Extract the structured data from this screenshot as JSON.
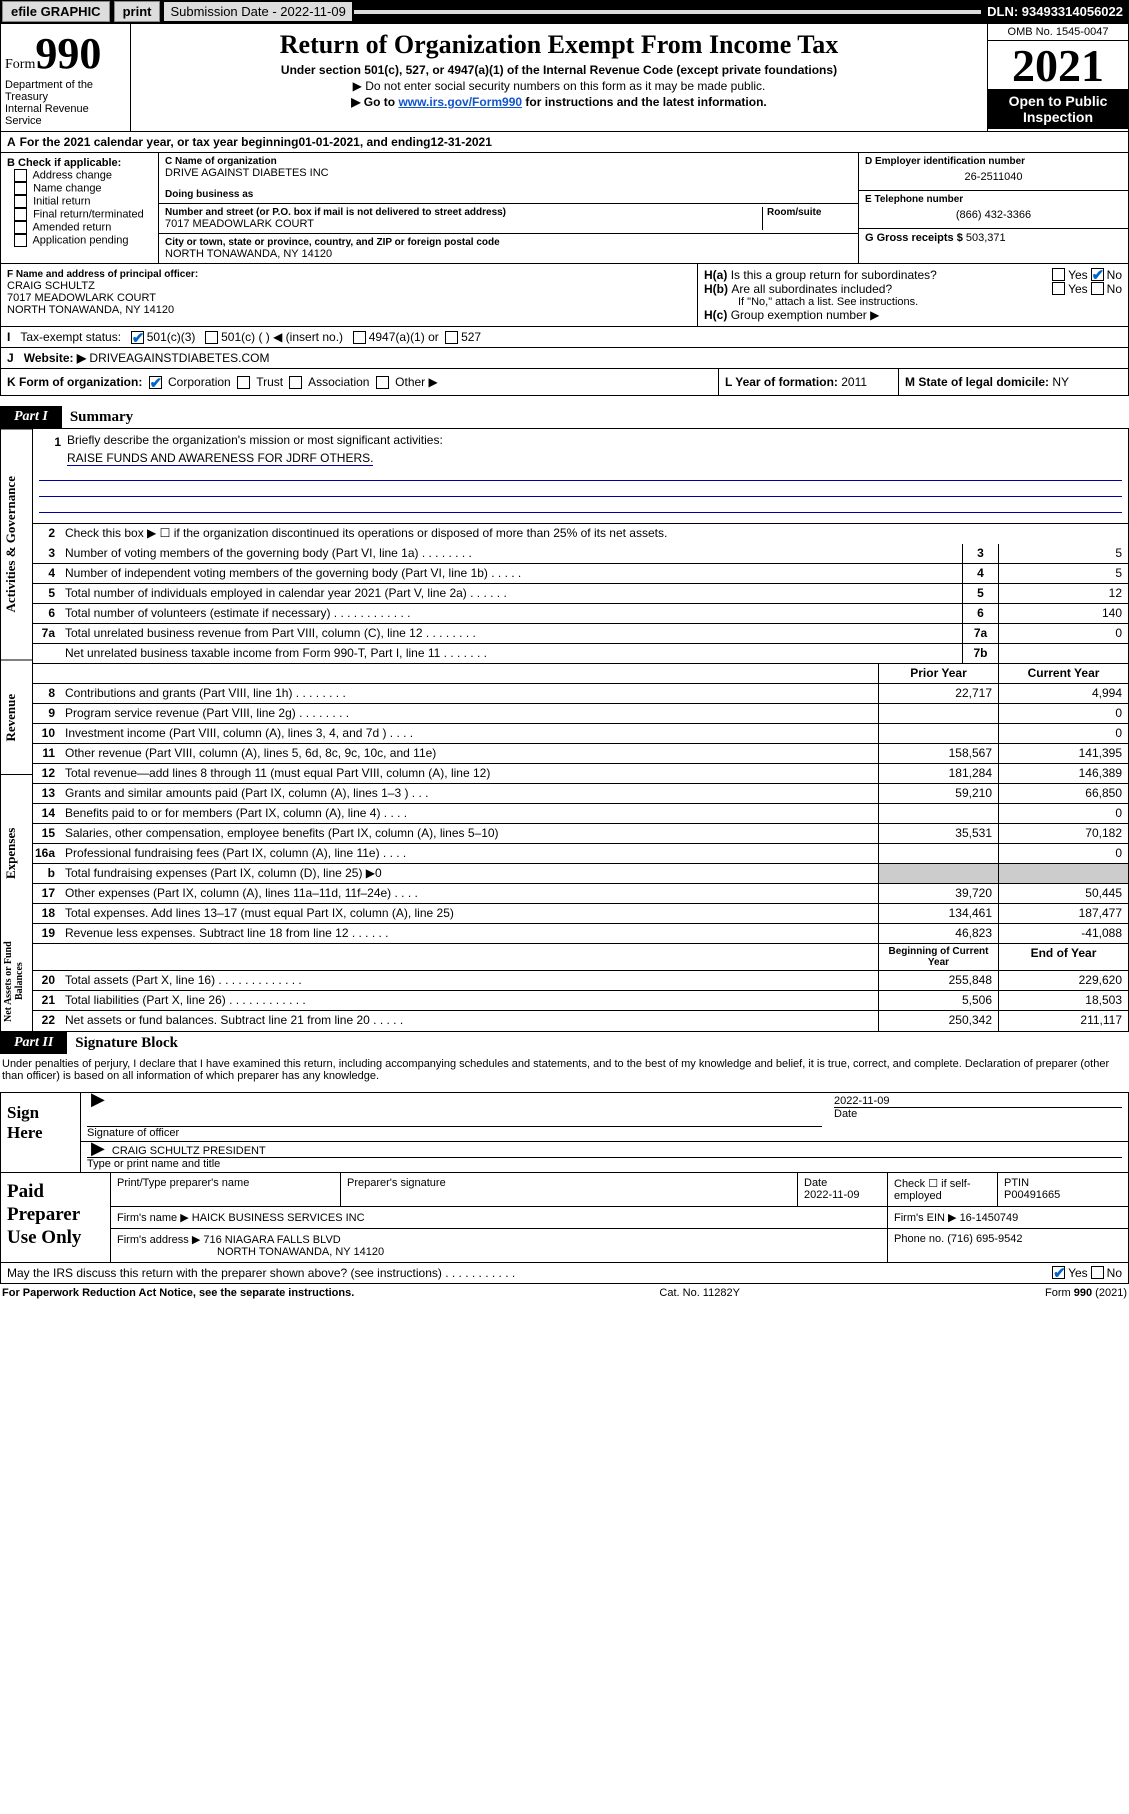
{
  "topbar": {
    "efile": "efile GRAPHIC",
    "print": "print",
    "submission_label": "Submission Date - 2022-11-09",
    "dln": "DLN: 93493314056022"
  },
  "header": {
    "form_label": "Form",
    "form_number": "990",
    "dept": "Department of the Treasury",
    "irs": "Internal Revenue Service",
    "title": "Return of Organization Exempt From Income Tax",
    "subtitle": "Under section 501(c), 527, or 4947(a)(1) of the Internal Revenue Code (except private foundations)",
    "line1": "▶ Do not enter social security numbers on this form as it may be made public.",
    "line2a": "▶ Go to ",
    "line2b": "www.irs.gov/Form990",
    "line2c": " for instructions and the latest information.",
    "omb": "OMB No. 1545-0047",
    "year": "2021",
    "open": "Open to Public Inspection"
  },
  "period": {
    "text_a": "For the 2021 calendar year, or tax year beginning ",
    "begin": "01-01-2021",
    "text_b": " , and ending ",
    "end": "12-31-2021"
  },
  "sectionB": {
    "title": "B Check if applicable:",
    "opts": [
      "Address change",
      "Name change",
      "Initial return",
      "Final return/terminated",
      "Amended return",
      "Application pending"
    ]
  },
  "sectionC": {
    "name_label": "C Name of organization",
    "name": "DRIVE AGAINST DIABETES INC",
    "dba_label": "Doing business as",
    "addr_label": "Number and street (or P.O. box if mail is not delivered to street address)",
    "room_label": "Room/suite",
    "addr": "7017 MEADOWLARK COURT",
    "city_label": "City or town, state or province, country, and ZIP or foreign postal code",
    "city": "NORTH TONAWANDA, NY  14120"
  },
  "sectionD": {
    "label": "D Employer identification number",
    "ein": "26-2511040",
    "tel_label": "E Telephone number",
    "tel": "(866) 432-3366",
    "gross_label": "G Gross receipts $ ",
    "gross": "503,371"
  },
  "sectionF": {
    "label": "F Name and address of principal officer:",
    "name": "CRAIG SCHULTZ",
    "addr1": "7017 MEADOWLARK COURT",
    "addr2": "NORTH TONAWANDA, NY  14120"
  },
  "sectionH": {
    "a": "Is this a group return for subordinates?",
    "b": "Are all subordinates included?",
    "b_note": "If \"No,\" attach a list. See instructions.",
    "c": "Group exemption number ▶"
  },
  "status": {
    "label": "Tax-exempt status:",
    "a": "501(c)(3)",
    "b": "501(c) (  ) ◀ (insert no.)",
    "c": "4947(a)(1) or",
    "d": "527"
  },
  "website": {
    "label": "Website: ▶",
    "value": "DRIVEAGAINSTDIABETES.COM"
  },
  "k": {
    "label": "K Form of organization:",
    "opts": [
      "Corporation",
      "Trust",
      "Association",
      "Other ▶"
    ],
    "l_label": "L Year of formation: ",
    "l_val": "2011",
    "m_label": "M State of legal domicile: ",
    "m_val": "NY"
  },
  "part1": {
    "tag": "Part I",
    "title": "Summary",
    "q1": "Briefly describe the organization's mission or most significant activities:",
    "mission": "RAISE FUNDS AND AWARENESS FOR JDRF OTHERS.",
    "q2": "Check this box ▶ ☐  if the organization discontinued its operations or disposed of more than 25% of its net assets.",
    "lines": [
      {
        "n": "3",
        "d": "Number of voting members of the governing body (Part VI, line 1a)   .    .    .    .    .    .    .    .",
        "box": "3",
        "v": "5"
      },
      {
        "n": "4",
        "d": "Number of independent voting members of the governing body (Part VI, line 1b)   .    .    .    .    .",
        "box": "4",
        "v": "5"
      },
      {
        "n": "5",
        "d": "Total number of individuals employed in calendar year 2021 (Part V, line 2a)   .    .    .    .    .    .",
        "box": "5",
        "v": "12"
      },
      {
        "n": "6",
        "d": "Total number of volunteers (estimate if necessary)   .    .    .    .    .    .    .    .    .    .    .    .",
        "box": "6",
        "v": "140"
      },
      {
        "n": "7a",
        "d": "Total unrelated business revenue from Part VIII, column (C), line 12   .    .    .    .    .    .    .    .",
        "box": "7a",
        "v": "0"
      },
      {
        "n": "",
        "d": "Net unrelated business taxable income from Form 990-T, Part I, line 11   .    .    .    .    .    .    .",
        "box": "7b",
        "v": ""
      }
    ],
    "col_prior": "Prior Year",
    "col_curr": "Current Year",
    "rev": [
      {
        "n": "8",
        "d": "Contributions and grants (Part VIII, line 1h)   .    .    .    .    .    .    .    .",
        "p": "22,717",
        "c": "4,994"
      },
      {
        "n": "9",
        "d": "Program service revenue (Part VIII, line 2g)   .    .    .    .    .    .    .    .",
        "p": "",
        "c": "0"
      },
      {
        "n": "10",
        "d": "Investment income (Part VIII, column (A), lines 3, 4, and 7d )   .    .    .    .",
        "p": "",
        "c": "0"
      },
      {
        "n": "11",
        "d": "Other revenue (Part VIII, column (A), lines 5, 6d, 8c, 9c, 10c, and 11e)",
        "p": "158,567",
        "c": "141,395"
      },
      {
        "n": "12",
        "d": "Total revenue—add lines 8 through 11 (must equal Part VIII, column (A), line 12)",
        "p": "181,284",
        "c": "146,389"
      }
    ],
    "exp": [
      {
        "n": "13",
        "d": "Grants and similar amounts paid (Part IX, column (A), lines 1–3 )   .    .    .",
        "p": "59,210",
        "c": "66,850"
      },
      {
        "n": "14",
        "d": "Benefits paid to or for members (Part IX, column (A), line 4)   .    .    .    .",
        "p": "",
        "c": "0"
      },
      {
        "n": "15",
        "d": "Salaries, other compensation, employee benefits (Part IX, column (A), lines 5–10)",
        "p": "35,531",
        "c": "70,182"
      },
      {
        "n": "16a",
        "d": "Professional fundraising fees (Part IX, column (A), line 11e)   .    .    .    .",
        "p": "",
        "c": "0"
      },
      {
        "n": "b",
        "d": "Total fundraising expenses (Part IX, column (D), line 25) ▶0",
        "p": "GREY",
        "c": "GREY"
      },
      {
        "n": "17",
        "d": "Other expenses (Part IX, column (A), lines 11a–11d, 11f–24e)   .    .    .    .",
        "p": "39,720",
        "c": "50,445"
      },
      {
        "n": "18",
        "d": "Total expenses. Add lines 13–17 (must equal Part IX, column (A), line 25)",
        "p": "134,461",
        "c": "187,477"
      },
      {
        "n": "19",
        "d": "Revenue less expenses. Subtract line 18 from line 12   .    .    .    .    .    .",
        "p": "46,823",
        "c": "-41,088"
      }
    ],
    "col_begin": "Beginning of Current Year",
    "col_end": "End of Year",
    "net": [
      {
        "n": "20",
        "d": "Total assets (Part X, line 16)   .    .    .    .    .    .    .    .    .    .    .    .    .",
        "p": "255,848",
        "c": "229,620"
      },
      {
        "n": "21",
        "d": "Total liabilities (Part X, line 26)   .    .    .    .    .    .    .    .    .    .    .    .",
        "p": "5,506",
        "c": "18,503"
      },
      {
        "n": "22",
        "d": "Net assets or fund balances. Subtract line 21 from line 20   .    .    .    .    .",
        "p": "250,342",
        "c": "211,117"
      }
    ],
    "vside": [
      "Activities & Governance",
      "Revenue",
      "Expenses",
      "Net Assets or Fund Balances"
    ]
  },
  "part2": {
    "tag": "Part II",
    "title": "Signature Block",
    "intro": "Under penalties of perjury, I declare that I have examined this return, including accompanying schedules and statements, and to the best of my knowledge and belief, it is true, correct, and complete. Declaration of preparer (other than officer) is based on all information of which preparer has any knowledge.",
    "sign_here": "Sign Here",
    "sig_of_officer": "Signature of officer",
    "sig_date": "2022-11-09",
    "date_lbl": "Date",
    "officer": "CRAIG SCHULTZ  PRESIDENT",
    "officer_lbl": "Type or print name and title",
    "paid": "Paid Preparer Use Only",
    "prep_name_lbl": "Print/Type preparer's name",
    "prep_sig_lbl": "Preparer's signature",
    "prep_date_lbl": "Date",
    "prep_date": "2022-11-09",
    "check_if": "Check ☐ if self-employed",
    "ptin_lbl": "PTIN",
    "ptin": "P00491665",
    "firm_name_lbl": "Firm's name    ▶",
    "firm_name": "HAICK BUSINESS SERVICES INC",
    "firm_ein_lbl": "Firm's EIN ▶",
    "firm_ein": "16-1450749",
    "firm_addr_lbl": "Firm's address ▶",
    "firm_addr1": "716 NIAGARA FALLS BLVD",
    "firm_addr2": "NORTH TONAWANDA, NY  14120",
    "phone_lbl": "Phone no. ",
    "phone": "(716) 695-9542",
    "discuss": "May the IRS discuss this return with the preparer shown above? (see instructions)   .    .    .    .    .    .    .    .    .    .    ."
  },
  "footer": {
    "left": "For Paperwork Reduction Act Notice, see the separate instructions.",
    "mid": "Cat. No. 11282Y",
    "right": "Form 990 (2021)"
  }
}
